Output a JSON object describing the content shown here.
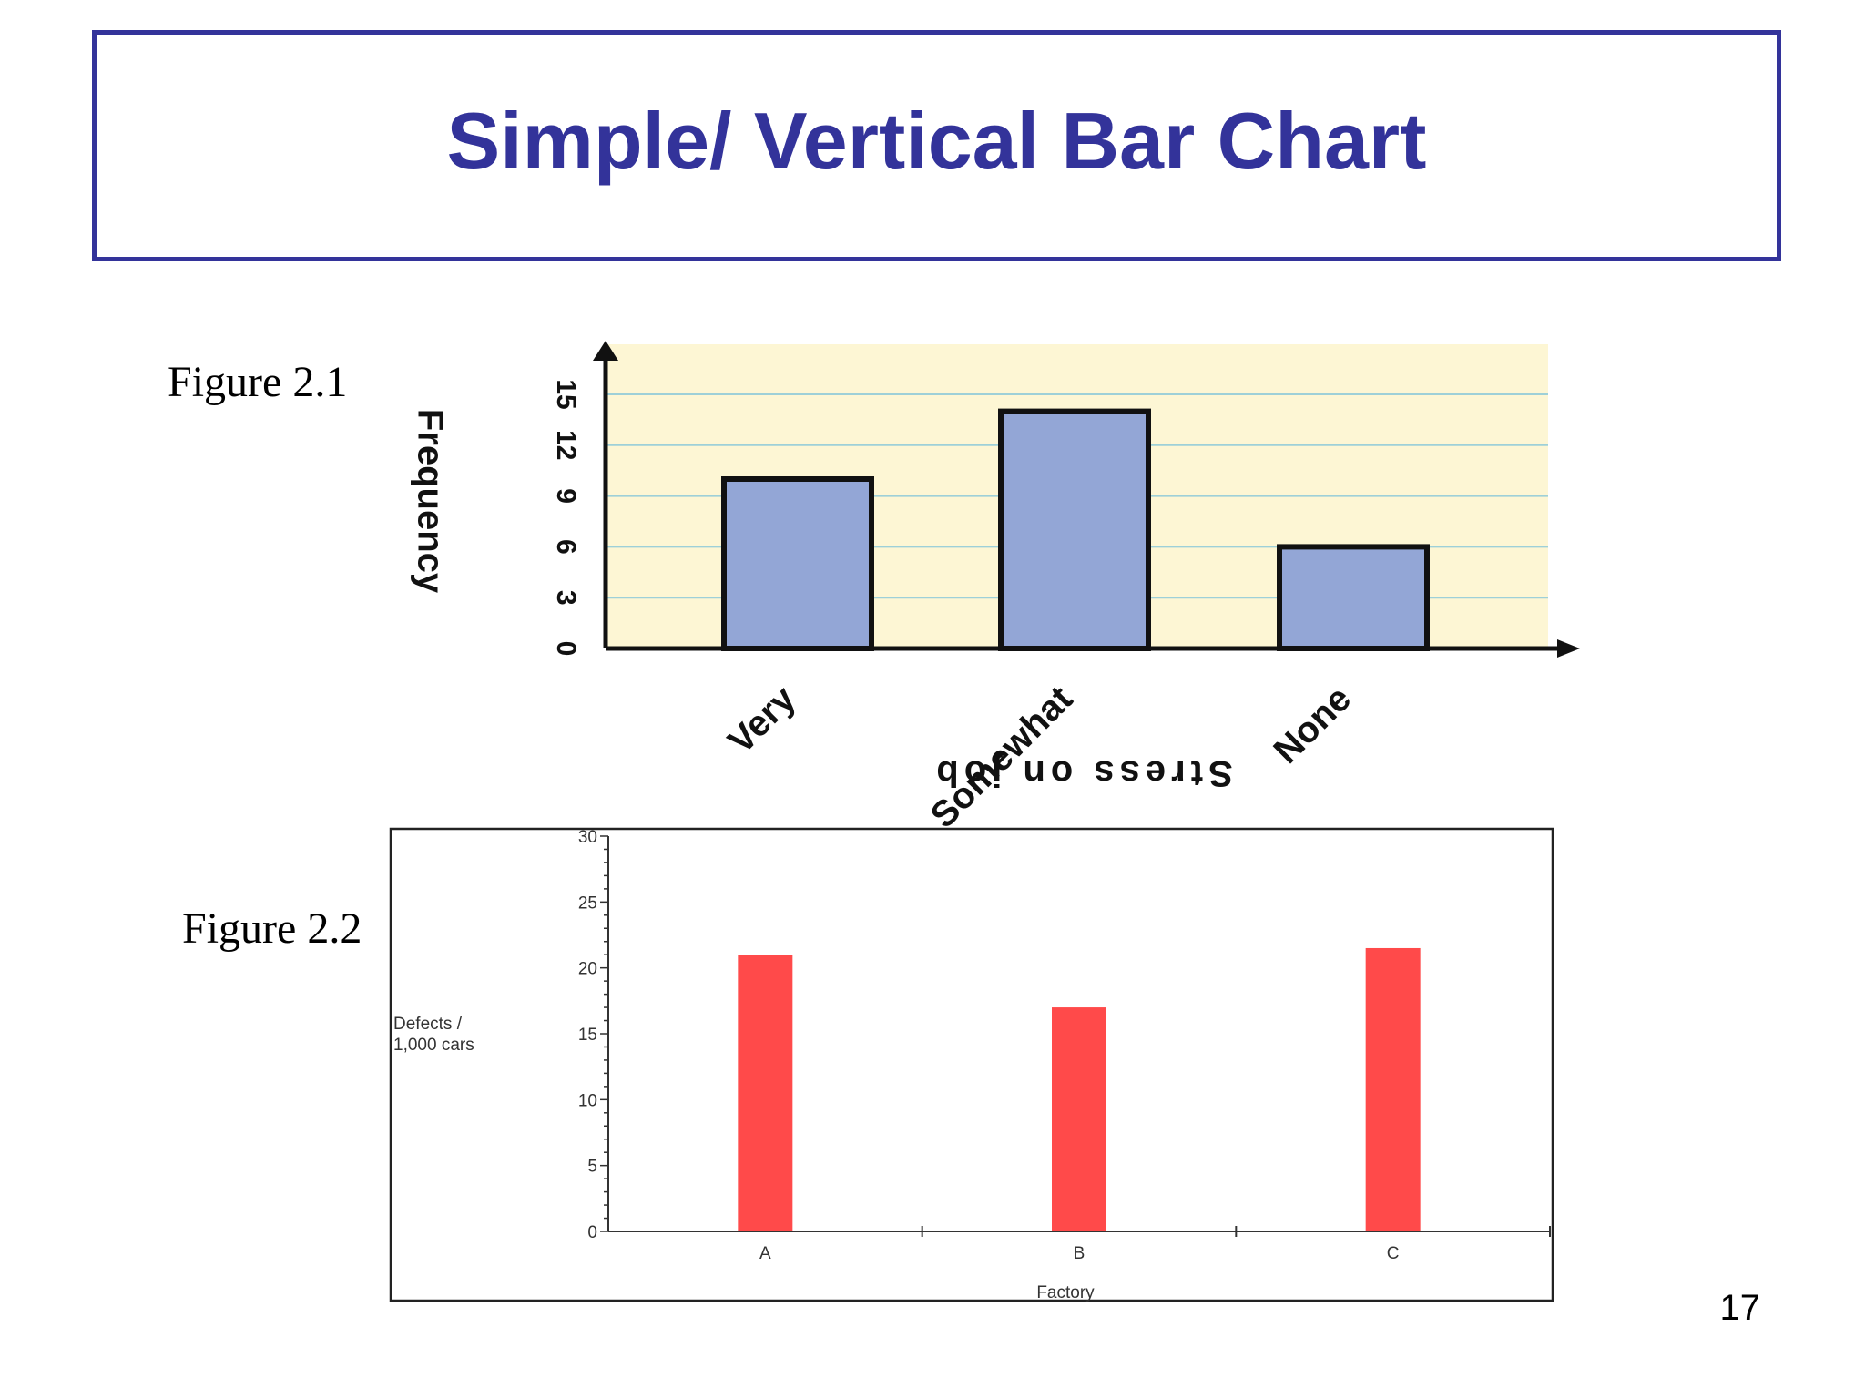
{
  "slide": {
    "title": "Simple/ Vertical Bar Chart",
    "figure1_label": "Figure 2.1",
    "figure2_label": "Figure 2.2",
    "page_number": "17"
  },
  "colors": {
    "title": "#33339a",
    "chart1_bg": "#fdf6d4",
    "chart1_grid": "#9ed0d8",
    "chart1_bar": "#93a6d6",
    "chart2_bar": "#ff4a4a"
  },
  "chart_data": [
    {
      "type": "bar",
      "categories": [
        "Very",
        "Somewhat",
        "None"
      ],
      "values": [
        10,
        14,
        6
      ],
      "xlabel": "Stress on job",
      "ylabel": "Frequency",
      "ylim": [
        0,
        15
      ],
      "yticks": [
        0,
        3,
        6,
        9,
        12,
        15
      ],
      "grid": true
    },
    {
      "type": "bar",
      "categories": [
        "A",
        "B",
        "C"
      ],
      "values": [
        21,
        17,
        21.5
      ],
      "xlabel": "Factory",
      "ylabel": "Defects / 1,000 cars",
      "ylim": [
        0,
        30
      ],
      "yticks": [
        0,
        5,
        10,
        15,
        20,
        25,
        30
      ],
      "grid": false
    }
  ]
}
